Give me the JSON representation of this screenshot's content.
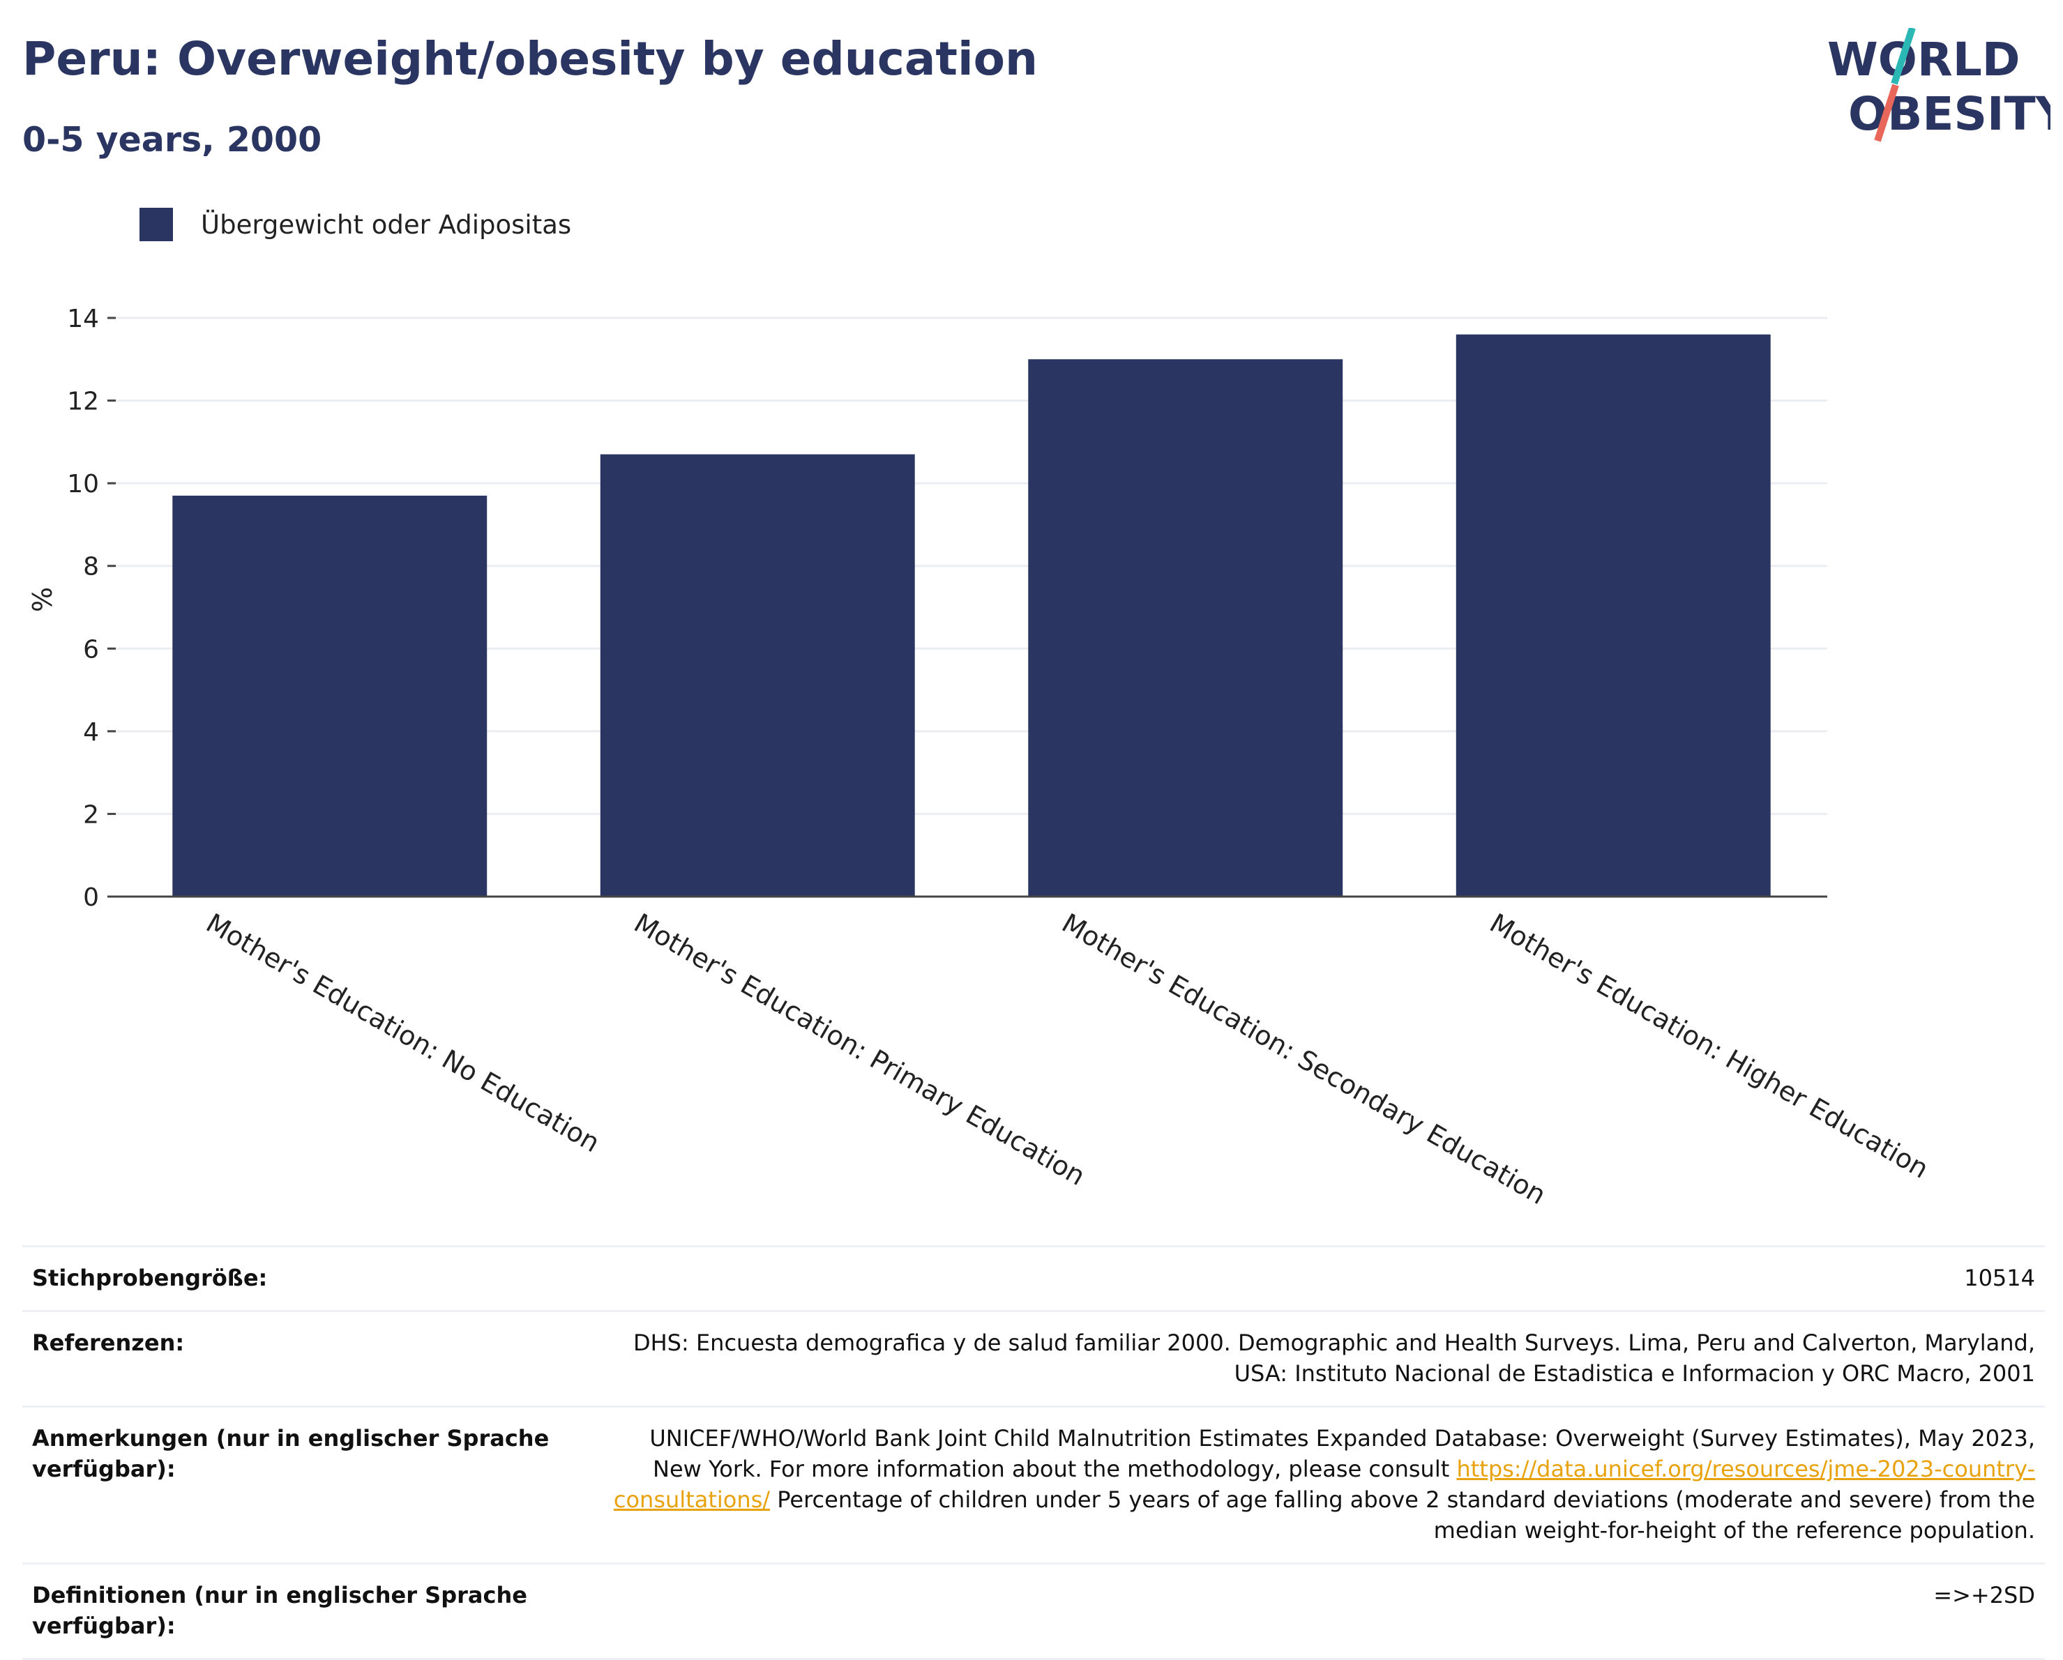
{
  "header": {
    "title": "Peru: Overweight/obesity by education",
    "subtitle": "0-5 years, 2000"
  },
  "logo": {
    "line1": "WORLD",
    "line2": "OBESITY",
    "colors": {
      "text": "#2a3561",
      "slash_top": "#2bb7b3",
      "slash_bottom": "#e8665a"
    }
  },
  "legend": {
    "label": "Übergewicht oder Adipositas"
  },
  "chart_data": {
    "type": "bar",
    "categories": [
      "Mother's Education: No Education",
      "Mother's Education: Primary Education",
      "Mother's Education: Secondary Education",
      "Mother's Education: Higher Education"
    ],
    "series": [
      {
        "name": "Übergewicht oder Adipositas",
        "values": [
          9.7,
          10.7,
          13.0,
          13.6
        ],
        "color": "#2a3561"
      }
    ],
    "ylabel": "%",
    "ylim": [
      0,
      14
    ],
    "yticks": [
      0,
      2,
      4,
      6,
      8,
      10,
      12,
      14
    ],
    "grid": true,
    "legend_position": "top-left"
  },
  "info": {
    "sample_size": {
      "label": "Stichprobengröße:",
      "value": "10514"
    },
    "references": {
      "label": "Referenzen:",
      "value": "DHS: Encuesta demografica y de salud familiar 2000. Demographic and Health Surveys. Lima, Peru and Calverton, Maryland, USA: Instituto Nacional de Estadistica e Informacion y ORC Macro, 2001"
    },
    "notes": {
      "label": "Anmerkungen (nur in englischer Sprache verfügbar):",
      "text_before": "UNICEF/WHO/World Bank Joint Child Malnutrition Estimates Expanded Database: Overweight (Survey Estimates), May 2023, New York. For more information about the methodology, please consult ",
      "link": "https://data.unicef.org/resources/jme-2023-country-consultations/",
      "text_after": " Percentage of children under 5 years of age falling above 2 standard deviations (moderate and severe) from the median weight-for-height of the reference population."
    },
    "definitions": {
      "label": "Definitionen (nur in englischer Sprache verfügbar):",
      "value": "=>+2SD"
    }
  }
}
